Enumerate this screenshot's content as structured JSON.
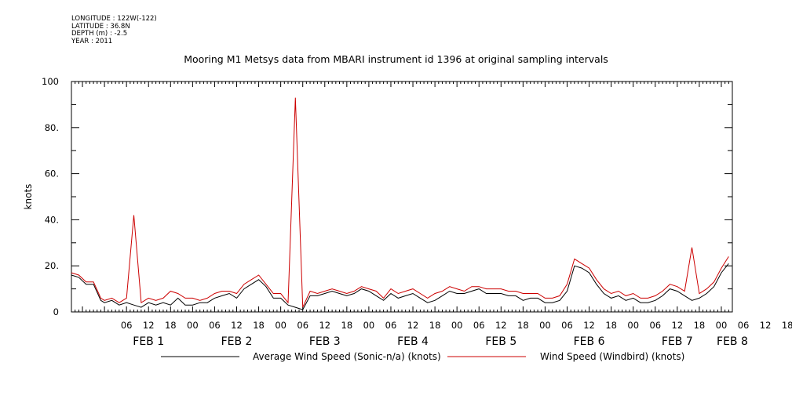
{
  "metadata": [
    {
      "key": "LONGITUDE",
      "value": "122W(-122)"
    },
    {
      "key": "LATITUDE",
      "value": "36.8N"
    },
    {
      "key": "DEPTH (m)",
      "value": "-2.5"
    },
    {
      "key": "YEAR",
      "value": "2011"
    }
  ],
  "chart_data": {
    "type": "line",
    "title": "Mooring M1 Metsys data from MBARI instrument id 1396 at original sampling intervals",
    "ylabel": "knots",
    "ylim": [
      0,
      100
    ],
    "y_ticks": [
      "0",
      "20.",
      "40.",
      "60.",
      "80.",
      "100"
    ],
    "x_unit": "hours since 2011-02-01 00:00",
    "xlim": [
      -9,
      171
    ],
    "x_hour_ticks": [
      "06",
      "12",
      "18",
      "00",
      "06",
      "12",
      "18",
      "00",
      "06",
      "12",
      "18",
      "00",
      "06",
      "12",
      "18",
      "00",
      "06",
      "12",
      "18",
      "00",
      "06",
      "12",
      "18",
      "00",
      "06",
      "12",
      "18",
      "00",
      "06",
      "12",
      "18",
      "00"
    ],
    "x_day_labels": [
      "FEB 1",
      "FEB 2",
      "FEB 3",
      "FEB 4",
      "FEB 5",
      "FEB 6",
      "FEB 7",
      "FEB 8"
    ],
    "grid": false,
    "legend_position": "bottom",
    "series": [
      {
        "name": "Average Wind Speed (Sonic-n/a) (knots)",
        "color": "#000000",
        "x": [
          -9,
          -7,
          -5,
          -3,
          -1,
          0,
          2,
          4,
          6,
          8,
          10,
          12,
          14,
          16,
          18,
          20,
          22,
          24,
          26,
          28,
          30,
          32,
          34,
          36,
          38,
          40,
          42,
          44,
          46,
          48,
          50,
          52,
          54,
          56,
          58,
          60,
          62,
          64,
          66,
          68,
          70,
          72,
          74,
          76,
          78,
          80,
          82,
          84,
          86,
          88,
          90,
          92,
          94,
          96,
          98,
          100,
          102,
          104,
          106,
          108,
          110,
          112,
          114,
          116,
          118,
          120,
          122,
          124,
          126,
          128,
          130,
          132,
          134,
          136,
          138,
          140,
          142,
          144,
          146,
          148,
          150,
          152,
          154,
          156,
          158,
          160,
          162,
          164,
          166,
          168,
          170
        ],
        "y": [
          16,
          15,
          12,
          12,
          5,
          4,
          5,
          3,
          4,
          3,
          2,
          4,
          3,
          4,
          3,
          6,
          3,
          3,
          4,
          4,
          6,
          7,
          8,
          6,
          10,
          12,
          14,
          11,
          6,
          6,
          3,
          2,
          1,
          7,
          7,
          8,
          9,
          8,
          7,
          8,
          10,
          9,
          7,
          5,
          8,
          6,
          7,
          8,
          6,
          4,
          5,
          7,
          9,
          8,
          8,
          9,
          10,
          8,
          8,
          8,
          7,
          7,
          5,
          6,
          6,
          4,
          4,
          5,
          9,
          20,
          19,
          17,
          12,
          8,
          6,
          7,
          5,
          6,
          4,
          4,
          5,
          7,
          10,
          9,
          7,
          5,
          6,
          8,
          11,
          17,
          21
        ]
      },
      {
        "name": "Wind Speed (Windbird) (knots)",
        "color": "#cc0000",
        "x": [
          -9,
          -7,
          -5,
          -3,
          -1,
          0,
          2,
          4,
          6,
          8,
          10,
          12,
          14,
          16,
          18,
          20,
          22,
          24,
          26,
          28,
          30,
          32,
          34,
          36,
          38,
          40,
          42,
          44,
          46,
          48,
          50,
          52,
          54,
          56,
          58,
          60,
          62,
          64,
          66,
          68,
          70,
          72,
          74,
          76,
          78,
          80,
          82,
          84,
          86,
          88,
          90,
          92,
          94,
          96,
          98,
          100,
          102,
          104,
          106,
          108,
          110,
          112,
          114,
          116,
          118,
          120,
          122,
          124,
          126,
          128,
          130,
          132,
          134,
          136,
          138,
          140,
          142,
          144,
          146,
          148,
          150,
          152,
          154,
          156,
          158,
          160,
          162,
          164,
          166,
          168,
          170
        ],
        "y": [
          17,
          16,
          13,
          13,
          6,
          5,
          6,
          4,
          6,
          42,
          4,
          6,
          5,
          6,
          9,
          8,
          6,
          6,
          5,
          6,
          8,
          9,
          9,
          8,
          12,
          14,
          16,
          12,
          8,
          8,
          4,
          93,
          2,
          9,
          8,
          9,
          10,
          9,
          8,
          9,
          11,
          10,
          9,
          6,
          10,
          8,
          9,
          10,
          8,
          6,
          8,
          9,
          11,
          10,
          9,
          11,
          11,
          10,
          10,
          10,
          9,
          9,
          8,
          8,
          8,
          6,
          6,
          7,
          12,
          23,
          21,
          19,
          14,
          10,
          8,
          9,
          7,
          8,
          6,
          6,
          7,
          9,
          12,
          11,
          9,
          28,
          8,
          10,
          13,
          19,
          24
        ]
      }
    ]
  }
}
